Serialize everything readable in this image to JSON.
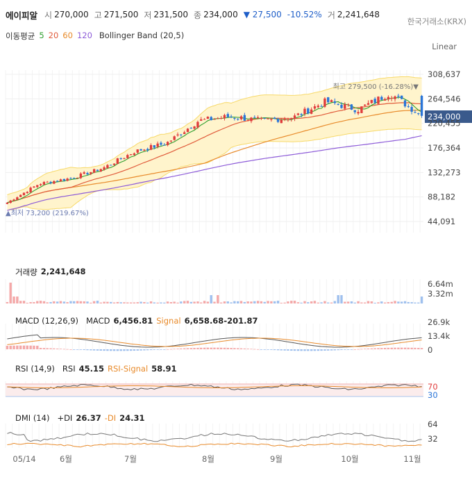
{
  "header": {
    "stock_name": "에이피알",
    "open_label": "시",
    "open_value": "270,000",
    "high_label": "고",
    "high_value": "271,500",
    "low_label": "저",
    "low_value": "231,500",
    "close_label": "종",
    "close_value": "234,000",
    "change": "▼ 27,500",
    "change_pct": "-10.52%",
    "volume_label": "거",
    "volume_value": "2,241,648",
    "exchange": "한국거래소(KRX)",
    "scale_mode": "Linear"
  },
  "moving_average": {
    "label": "이동평균",
    "periods": [
      {
        "value": "5",
        "color": "#2e9e2e"
      },
      {
        "value": "20",
        "color": "#e05a3a"
      },
      {
        "value": "60",
        "color": "#e88a2a"
      },
      {
        "value": "120",
        "color": "#8c5ad8"
      }
    ],
    "bollinger_label": "Bollinger Band (20,5)"
  },
  "colors": {
    "up": "#e03c3c",
    "down": "#2a75d8",
    "band_fill": "#fff4cc",
    "band_line": "#f7d968",
    "ma5": "#2e9e2e",
    "ma20": "#e05a3a",
    "ma60": "#e88a2a",
    "ma120": "#8c5ad8",
    "current_tag": "#3a5a8c"
  },
  "chart_data": [
    {
      "type": "candlestick",
      "name": "price",
      "y_ticks": [
        "308,637",
        "264,546",
        "220,455",
        "176,364",
        "132,273",
        "88,182",
        "44,091"
      ],
      "y_tick_values": [
        308637,
        264546,
        220455,
        176364,
        132273,
        88182,
        44091
      ],
      "x_labels": [
        "05/14",
        "6월",
        "7월",
        "8월",
        "9월",
        "10월",
        "11월"
      ],
      "current_price_tag": "234,000",
      "high_annotation": "최고 279,500 (-16.28%)▼",
      "low_annotation": "▲최저 73,200 (219.67%)",
      "sampled_closes_approx": [
        {
          "date": "05/14",
          "close": 78000
        },
        {
          "date": "06 early",
          "close": 112000
        },
        {
          "date": "06 late",
          "close": 122000
        },
        {
          "date": "07 early",
          "close": 140000
        },
        {
          "date": "07 mid",
          "close": 170000
        },
        {
          "date": "07 late",
          "close": 185000
        },
        {
          "date": "08 early",
          "close": 225000
        },
        {
          "date": "08 late",
          "close": 233000
        },
        {
          "date": "09 mid",
          "close": 225000
        },
        {
          "date": "09 late",
          "close": 232000
        },
        {
          "date": "10 early",
          "close": 260000
        },
        {
          "date": "10 late",
          "close": 245000
        },
        {
          "date": "11 early",
          "close": 275000
        },
        {
          "date": "11 last",
          "close": 234000
        }
      ]
    },
    {
      "type": "bar",
      "name": "volume",
      "label": "거래량",
      "value": "2,241,648",
      "y_ticks": [
        "6.64m",
        "3.32m"
      ]
    },
    {
      "type": "line",
      "name": "MACD",
      "label": "MACD (12,26,9)",
      "macd_label": "MACD",
      "macd_value": "6,456.81",
      "signal_label": "Signal",
      "signal_value": "6,658.68",
      "osc_value": "-201.87",
      "y_ticks": [
        "26.9k",
        "13.4k",
        "0"
      ]
    },
    {
      "type": "line",
      "name": "RSI",
      "label": "RSI (14,9)",
      "rsi_label": "RSI",
      "rsi_value": "45.15",
      "signal_label": "RSI-Signal",
      "signal_value": "58.91",
      "y_ticks": [
        "70",
        "30"
      ]
    },
    {
      "type": "line",
      "name": "DMI",
      "label": "DMI (14)",
      "pdi_label": "+DI",
      "pdi_value": "26.37",
      "mdi_label": "-DI",
      "mdi_value": "24.31",
      "y_ticks": [
        "64",
        "32"
      ]
    }
  ]
}
